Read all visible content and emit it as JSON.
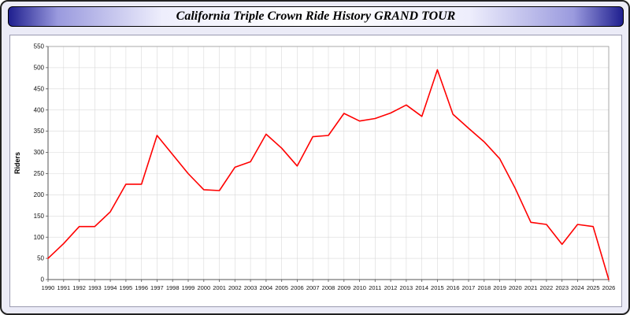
{
  "header": {
    "title": "California Triple Crown Ride History GRAND TOUR"
  },
  "chart_data": {
    "type": "line",
    "title": "California Triple Crown Ride History GRAND TOUR",
    "xlabel": "",
    "ylabel": "Riders",
    "x_range": [
      1990,
      2026
    ],
    "ylim": [
      0,
      550
    ],
    "ytick_step": 50,
    "grid": true,
    "legend": "none",
    "x": [
      1990,
      1991,
      1992,
      1993,
      1994,
      1995,
      1996,
      1997,
      1998,
      1999,
      2000,
      2001,
      2002,
      2003,
      2004,
      2005,
      2006,
      2007,
      2008,
      2009,
      2010,
      2011,
      2012,
      2013,
      2014,
      2015,
      2016,
      2017,
      2018,
      2019,
      2020,
      2021,
      2022,
      2023,
      2024,
      2025,
      2026
    ],
    "series": [
      {
        "name": "Riders",
        "values": [
          50,
          85,
          125,
          125,
          160,
          225,
          225,
          340,
          295,
          250,
          212,
          210,
          265,
          278,
          343,
          310,
          268,
          337,
          340,
          392,
          374,
          380,
          393,
          412,
          385,
          495,
          390,
          357,
          325,
          285,
          215,
          135,
          130,
          83,
          130,
          125,
          0
        ]
      }
    ],
    "colors": {
      "line": "#ff0000",
      "grid": "#d9d9d9",
      "axis": "#555555",
      "tick_text": "#111111",
      "plot_bg": "#ffffff"
    }
  }
}
